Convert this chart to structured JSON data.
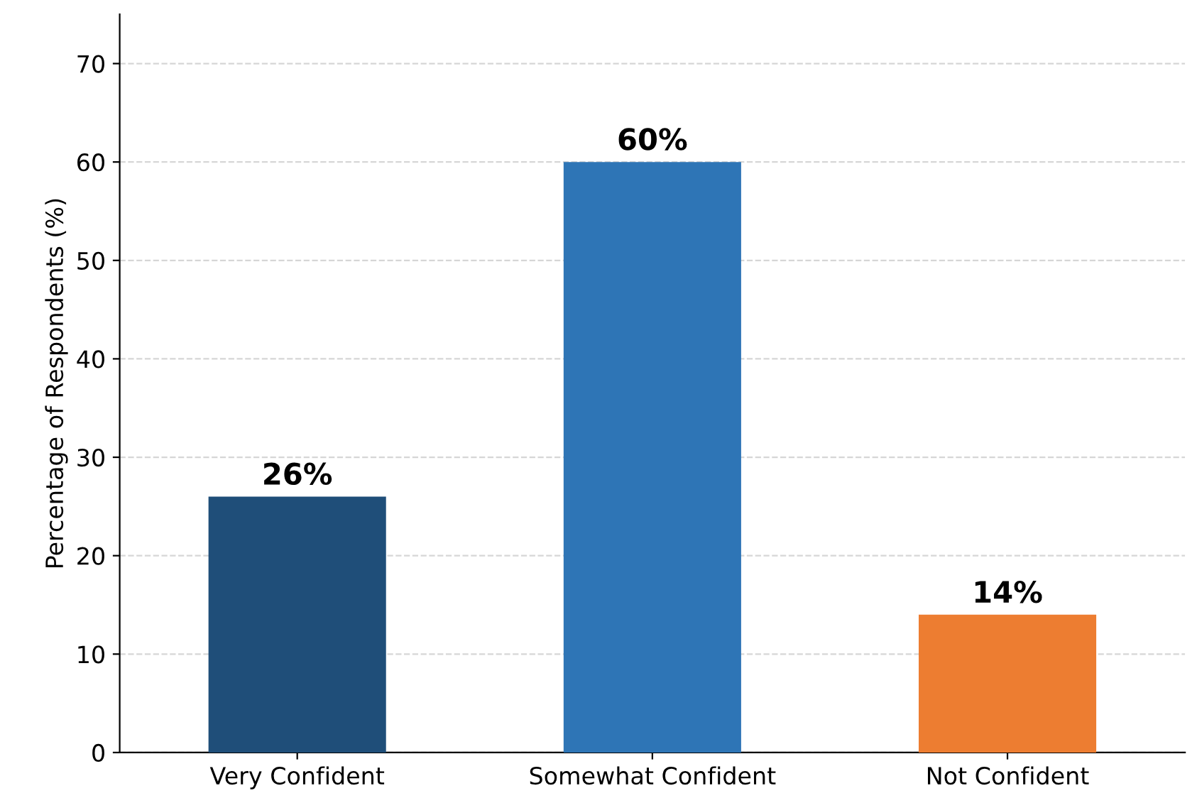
{
  "chart_data": {
    "type": "bar",
    "ylabel": "Percentage of Respondents (%)",
    "categories": [
      "Very Confident",
      "Somewhat Confident",
      "Not Confident"
    ],
    "values": [
      26,
      60,
      14
    ],
    "value_labels": [
      "26%",
      "60%",
      "14%"
    ],
    "colors": [
      "#1f4e79",
      "#2e75b6",
      "#ed7d31"
    ],
    "ylim": [
      0,
      75
    ],
    "yticks": [
      0,
      10,
      20,
      30,
      40,
      50,
      60,
      70
    ],
    "grid": "y"
  }
}
